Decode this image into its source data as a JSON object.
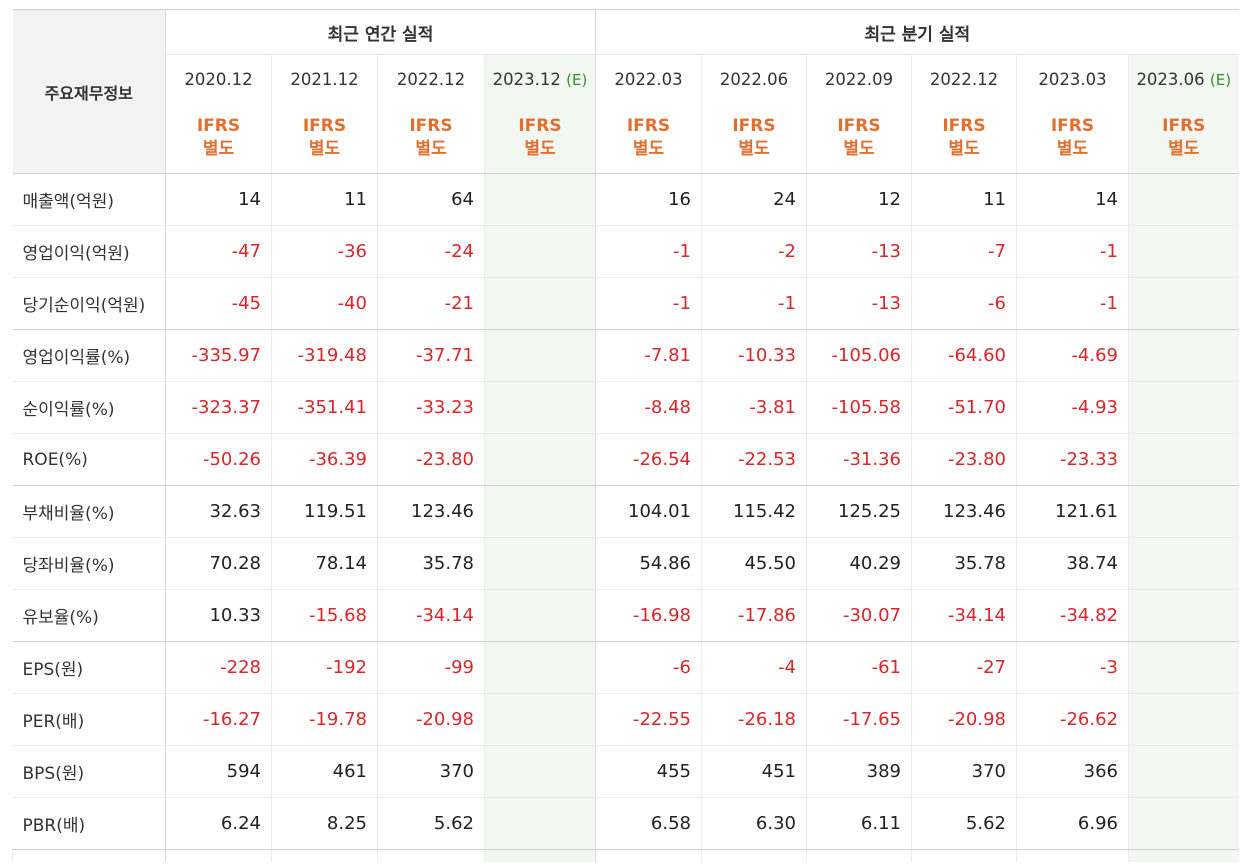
{
  "header": {
    "corner_label": "주요재무정보",
    "annual_title": "최근 연간 실적",
    "quarterly_title": "최근 분기 실적",
    "columns": [
      {
        "date": "2020.12",
        "estimate": "",
        "ifrs": "IFRS",
        "basis": "별도"
      },
      {
        "date": "2021.12",
        "estimate": "",
        "ifrs": "IFRS",
        "basis": "별도"
      },
      {
        "date": "2022.12",
        "estimate": "",
        "ifrs": "IFRS",
        "basis": "별도"
      },
      {
        "date": "2023.12",
        "estimate": "(E)",
        "ifrs": "IFRS",
        "basis": "별도"
      },
      {
        "date": "2022.03",
        "estimate": "",
        "ifrs": "IFRS",
        "basis": "별도"
      },
      {
        "date": "2022.06",
        "estimate": "",
        "ifrs": "IFRS",
        "basis": "별도"
      },
      {
        "date": "2022.09",
        "estimate": "",
        "ifrs": "IFRS",
        "basis": "별도"
      },
      {
        "date": "2022.12",
        "estimate": "",
        "ifrs": "IFRS",
        "basis": "별도"
      },
      {
        "date": "2023.03",
        "estimate": "",
        "ifrs": "IFRS",
        "basis": "별도"
      },
      {
        "date": "2023.06",
        "estimate": "(E)",
        "ifrs": "IFRS",
        "basis": "별도"
      }
    ]
  },
  "rows": [
    {
      "label": "매출액(억원)",
      "values": [
        "14",
        "11",
        "64",
        "",
        "16",
        "24",
        "12",
        "11",
        "14",
        ""
      ]
    },
    {
      "label": "영업이익(억원)",
      "values": [
        "-47",
        "-36",
        "-24",
        "",
        "-1",
        "-2",
        "-13",
        "-7",
        "-1",
        ""
      ]
    },
    {
      "label": "당기순이익(억원)",
      "values": [
        "-45",
        "-40",
        "-21",
        "",
        "-1",
        "-1",
        "-13",
        "-6",
        "-1",
        ""
      ]
    },
    {
      "label": "영업이익률(%)",
      "values": [
        "-335.97",
        "-319.48",
        "-37.71",
        "",
        "-7.81",
        "-10.33",
        "-105.06",
        "-64.60",
        "-4.69",
        ""
      ]
    },
    {
      "label": "순이익률(%)",
      "values": [
        "-323.37",
        "-351.41",
        "-33.23",
        "",
        "-8.48",
        "-3.81",
        "-105.58",
        "-51.70",
        "-4.93",
        ""
      ]
    },
    {
      "label": "ROE(%)",
      "values": [
        "-50.26",
        "-36.39",
        "-23.80",
        "",
        "-26.54",
        "-22.53",
        "-31.36",
        "-23.80",
        "-23.33",
        ""
      ]
    },
    {
      "label": "부채비율(%)",
      "values": [
        "32.63",
        "119.51",
        "123.46",
        "",
        "104.01",
        "115.42",
        "125.25",
        "123.46",
        "121.61",
        ""
      ]
    },
    {
      "label": "당좌비율(%)",
      "values": [
        "70.28",
        "78.14",
        "35.78",
        "",
        "54.86",
        "45.50",
        "40.29",
        "35.78",
        "38.74",
        ""
      ]
    },
    {
      "label": "유보율(%)",
      "values": [
        "10.33",
        "-15.68",
        "-34.14",
        "",
        "-16.98",
        "-17.86",
        "-30.07",
        "-34.14",
        "-34.82",
        ""
      ]
    },
    {
      "label": "EPS(원)",
      "values": [
        "-228",
        "-192",
        "-99",
        "",
        "-6",
        "-4",
        "-61",
        "-27",
        "-3",
        ""
      ]
    },
    {
      "label": "PER(배)",
      "values": [
        "-16.27",
        "-19.78",
        "-20.98",
        "",
        "-22.55",
        "-26.18",
        "-17.65",
        "-20.98",
        "-26.62",
        ""
      ]
    },
    {
      "label": "BPS(원)",
      "values": [
        "594",
        "461",
        "370",
        "",
        "455",
        "451",
        "389",
        "370",
        "366",
        ""
      ]
    },
    {
      "label": "PBR(배)",
      "values": [
        "6.24",
        "8.25",
        "5.62",
        "",
        "6.58",
        "6.30",
        "6.11",
        "5.62",
        "6.96",
        ""
      ]
    }
  ],
  "colors": {
    "negative": "#d9262a",
    "ifrs": "#e07030",
    "estimate_text": "#2f8f2f",
    "estimate_bg": "#f3f7f1"
  }
}
